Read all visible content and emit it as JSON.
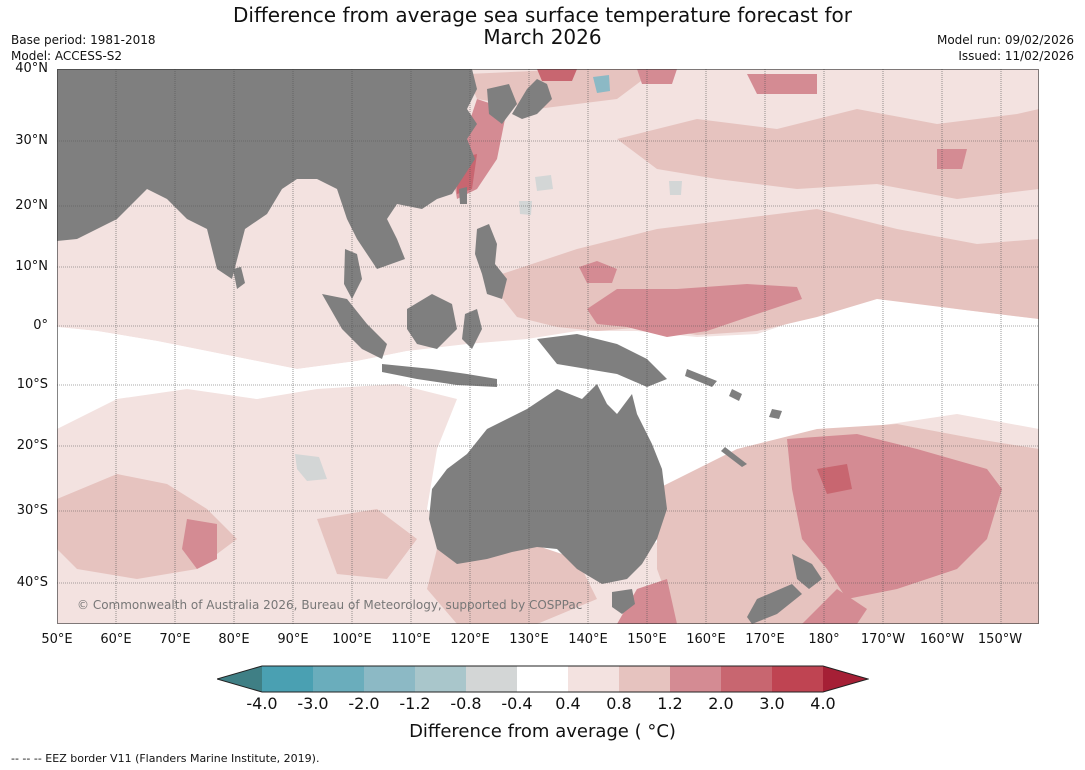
{
  "header": {
    "title_line1": "Difference from average sea surface temperature forecast for",
    "title_line2": "March 2026",
    "base_period": "Base period: 1981-2018",
    "model": "Model: ACCESS-S2",
    "model_run": "Model run: 09/02/2026",
    "issued": "Issued: 11/02/2026"
  },
  "map": {
    "lat_labels": [
      "40°N",
      "30°N",
      "20°N",
      "10°N",
      "0°",
      "10°S",
      "20°S",
      "30°S",
      "40°S"
    ],
    "lon_labels": [
      "50°E",
      "60°E",
      "70°E",
      "80°E",
      "90°E",
      "100°E",
      "110°E",
      "120°E",
      "130°E",
      "140°E",
      "150°E",
      "160°E",
      "170°E",
      "180°",
      "170°W",
      "160°W",
      "150°W"
    ],
    "copyright": "© Commonwealth of Australia 2026, Bureau of Meteorology, supported by COSPPac",
    "colors": {
      "land": "#7f7f7f",
      "ocean": "#ffffff",
      "grid": "#555555"
    }
  },
  "colorbar": {
    "ticks": [
      "-4.0",
      "-3.0",
      "-2.0",
      "-1.2",
      "-0.8",
      "-0.4",
      "0.4",
      "0.8",
      "1.2",
      "2.0",
      "3.0",
      "4.0"
    ],
    "colors": [
      "#3f7f85",
      "#4aa0b2",
      "#6aadbc",
      "#8cb9c5",
      "#a9c6cb",
      "#d3d6d6",
      "#ffffff",
      "#f3e2e0",
      "#e6c3bf",
      "#d48b93",
      "#c86670",
      "#bf4452",
      "#a51f35"
    ],
    "label": "Difference from average ( °C)"
  },
  "footer": {
    "eez_note": "--  --  -- EEZ border V11 (Flanders Marine Institute, 2019)."
  }
}
